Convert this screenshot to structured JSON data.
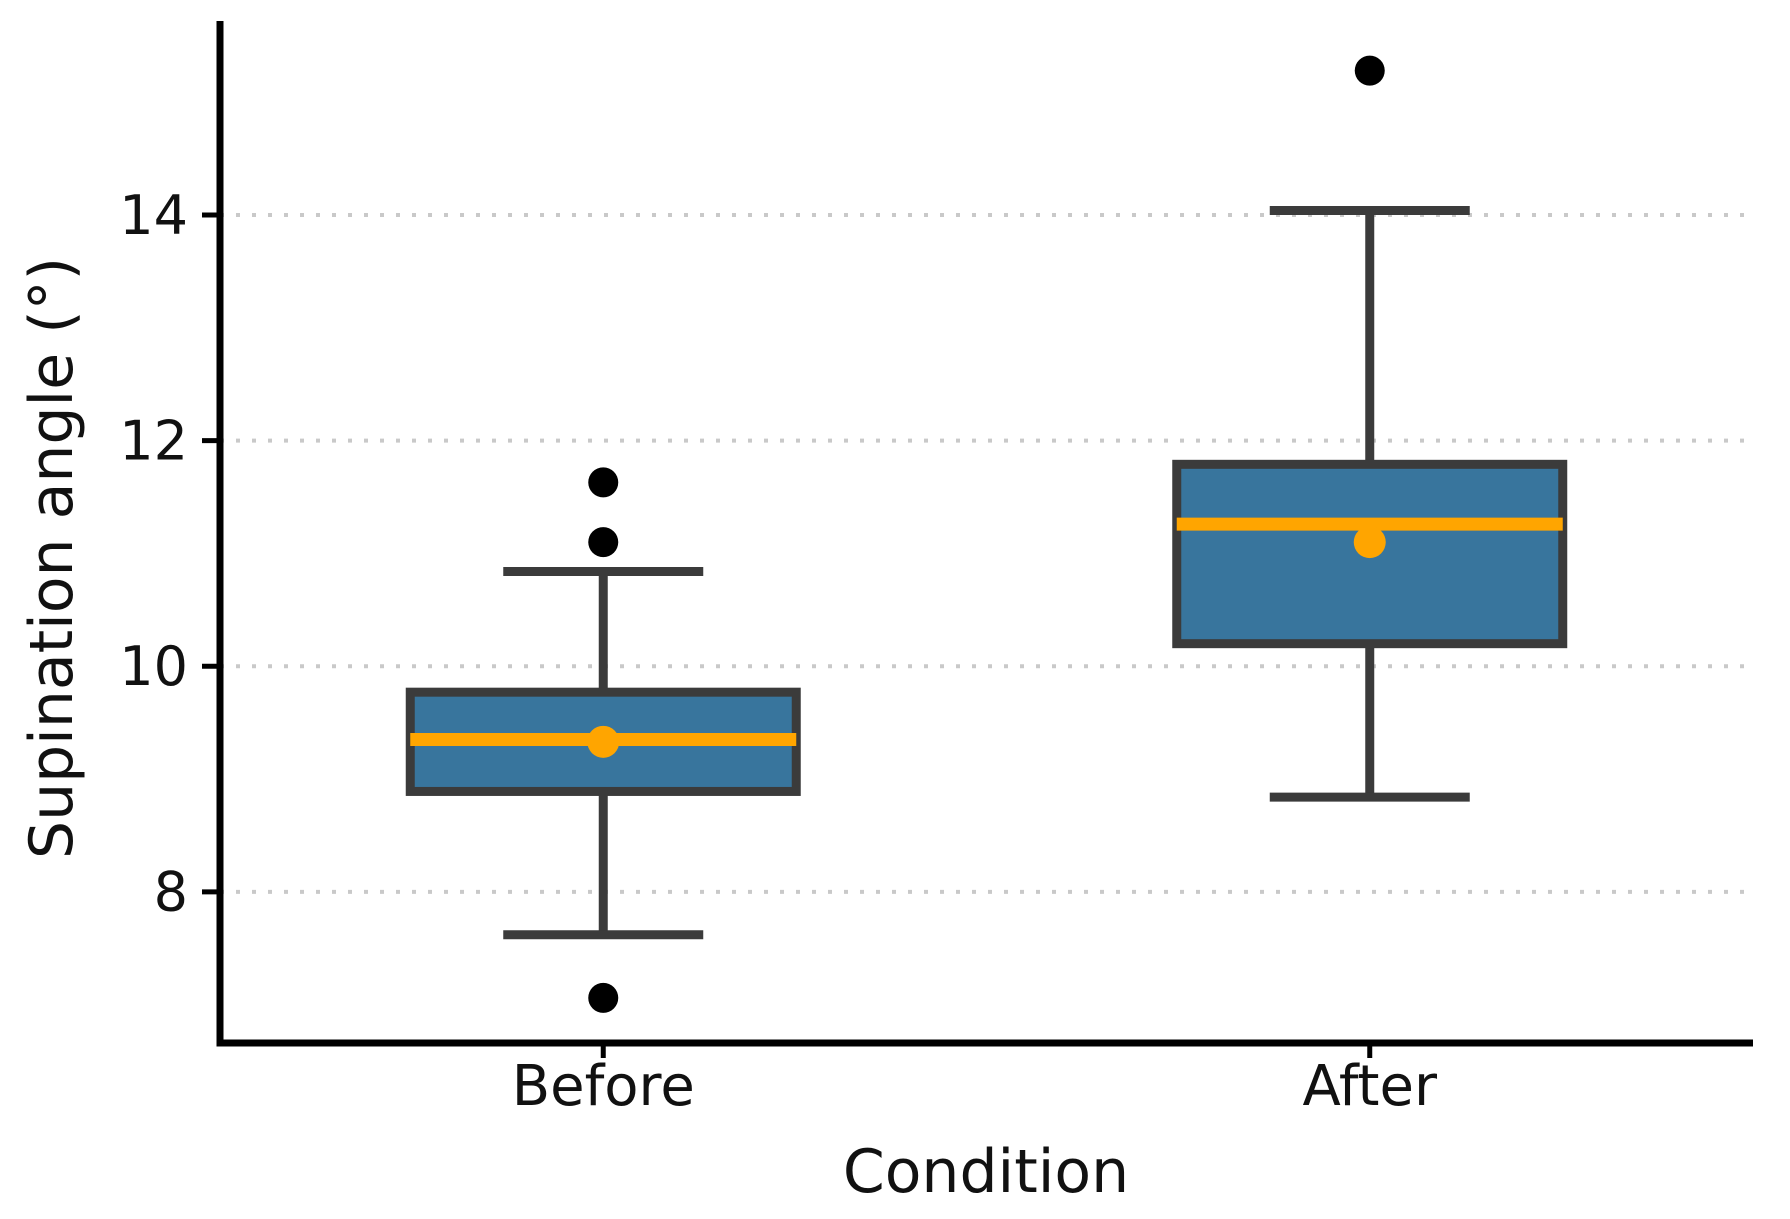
{
  "chart_data": {
    "type": "box",
    "title": "",
    "xlabel": "Condition",
    "ylabel": "Supination angle (°)",
    "categories": [
      "Before",
      "After"
    ],
    "yticks": [
      8,
      10,
      12,
      14
    ],
    "ylim": [
      6.66,
      15.72
    ],
    "grid": "horizontal dotted lines at each y tick",
    "legend": "none",
    "series": [
      {
        "name": "Before",
        "whisker_low": 7.62,
        "q1": 8.89,
        "median": 9.35,
        "q3": 9.77,
        "whisker_high": 10.84,
        "mean": 9.33,
        "outliers": [
          11.63,
          11.1,
          7.06
        ]
      },
      {
        "name": "After",
        "whisker_low": 8.84,
        "q1": 10.2,
        "median": 11.26,
        "q3": 11.79,
        "whisker_high": 14.04,
        "mean": 11.1,
        "outliers": [
          15.28
        ]
      }
    ],
    "colors": {
      "box_fill": "#38759D",
      "box_edge": "#3B3B3B",
      "whisker": "#3B3B3B",
      "median_line": "#FFA500",
      "mean_marker": "#FFA500",
      "outlier_marker": "#000000",
      "gridline": "#C9C9C9",
      "spine": "#000000",
      "text": "#111111"
    }
  }
}
